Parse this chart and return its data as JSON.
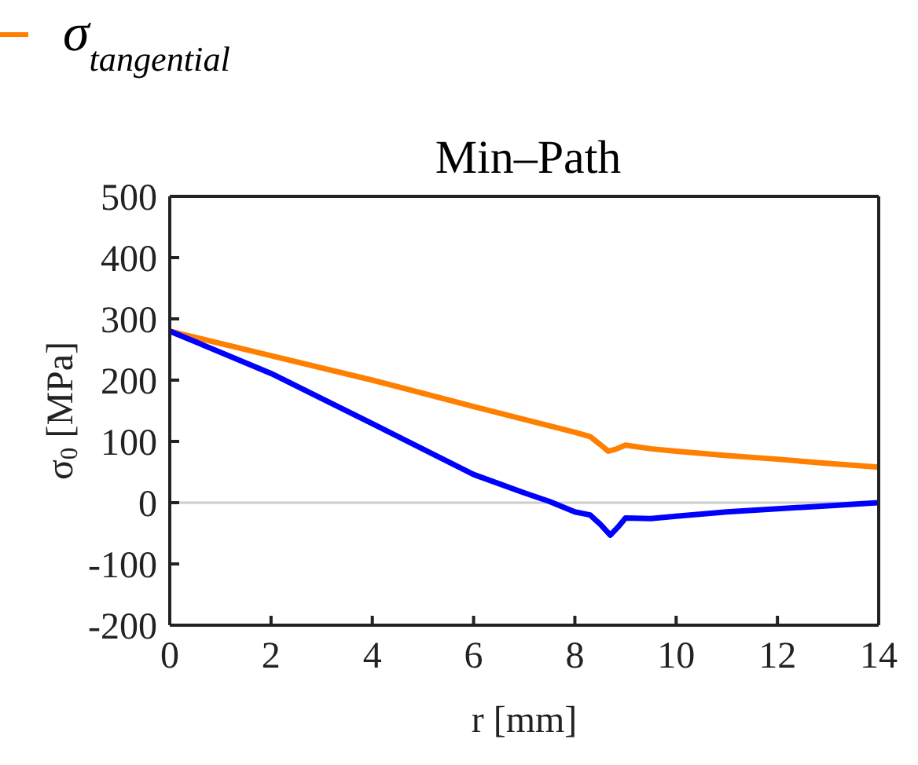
{
  "chart_data": {
    "type": "line",
    "title": "Min–Path",
    "xlabel": "r [mm]",
    "ylabel": "σ$_{0}$ [MPa]",
    "legend": "top left",
    "xlim": [
      0,
      14
    ],
    "xticks": [
      0,
      2,
      4,
      6,
      8,
      10,
      12,
      14
    ],
    "ylim": [
      -200,
      500
    ],
    "yticks": [
      -200,
      -100,
      0,
      100,
      200,
      300,
      400,
      500
    ],
    "grid": false,
    "marker": "none",
    "line_style": "solid",
    "ref_lines": [
      {
        "axis": "y",
        "value": 0,
        "color": "#cccccc"
      }
    ],
    "series": [
      {
        "name": "σ$_{tangential}$",
        "color": "#ff8000",
        "x": [
          0,
          2,
          4,
          6,
          8,
          8.3,
          8.5,
          8.66,
          8.8,
          9.0,
          9.5,
          10,
          11,
          12,
          13,
          14
        ],
        "values": [
          280,
          240,
          200,
          157,
          115,
          108,
          95,
          84,
          87,
          94,
          88,
          84,
          77,
          71,
          64,
          58
        ]
      },
      {
        "color": "#0000ff",
        "x": [
          0,
          2,
          4,
          6,
          7,
          7.5,
          8,
          8.3,
          8.5,
          8.7,
          8.85,
          9.0,
          9.5,
          10,
          11,
          12,
          13,
          14
        ],
        "values": [
          280,
          211,
          129,
          46,
          16,
          2,
          -15,
          -20,
          -35,
          -53,
          -40,
          -25,
          -26,
          -22,
          -15,
          -10,
          -5,
          0
        ]
      }
    ]
  }
}
